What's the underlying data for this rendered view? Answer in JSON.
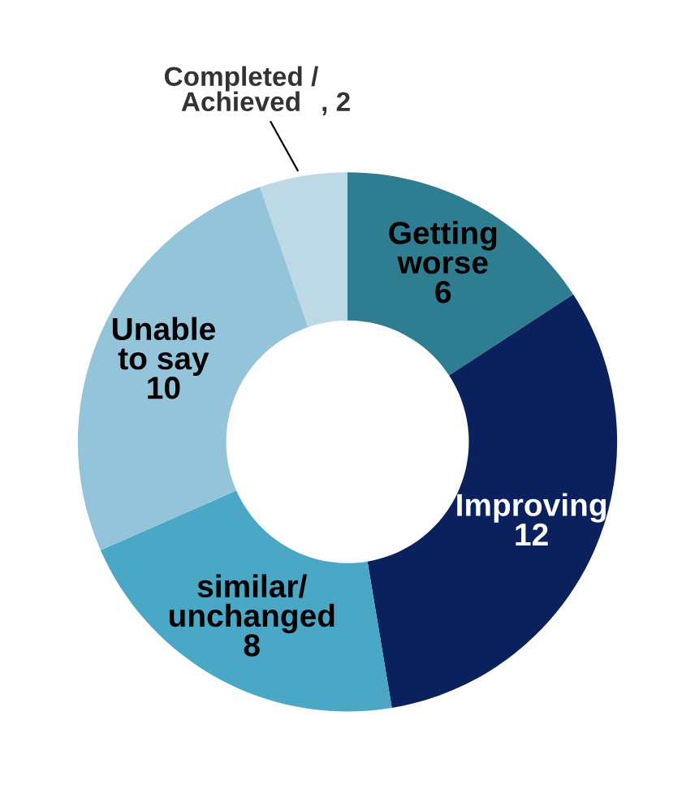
{
  "chart_data": {
    "type": "donut",
    "categories": [
      "Getting worse",
      "Improving",
      "similar/ unchanged",
      "Unable to say",
      "Completed / Achieved"
    ],
    "values": [
      6,
      12,
      8,
      10,
      2
    ],
    "colors": [
      "#2f7d91",
      "#0b215e",
      "#4aa8c6",
      "#93c4da",
      "#bdd9e6"
    ],
    "value_labels": [
      "6",
      "12",
      "8",
      "10",
      ", 2"
    ]
  }
}
